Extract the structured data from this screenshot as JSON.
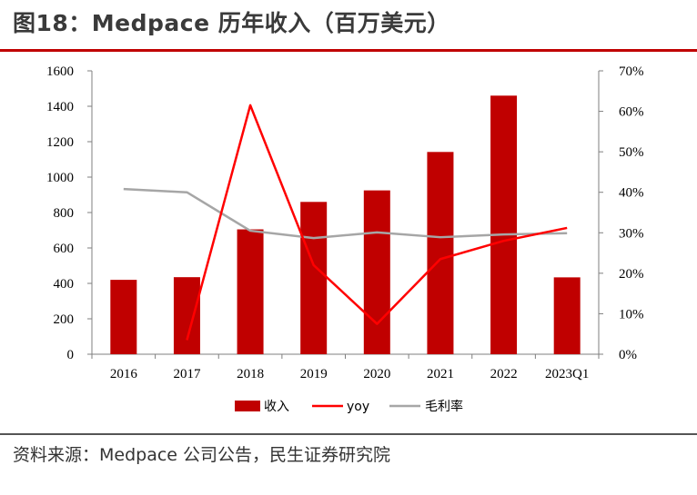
{
  "title": "图18：Medpace 历年收入（百万美元）",
  "source": "资料来源：Medpace 公司公告，民生证券研究院",
  "colors": {
    "bar": "#c00000",
    "yoy": "#ff0000",
    "margin": "#a6a6a6",
    "rule": "#c00000"
  },
  "chart_data": {
    "type": "bar",
    "categories": [
      "2016",
      "2017",
      "2018",
      "2019",
      "2020",
      "2021",
      "2022",
      "2023Q1"
    ],
    "series": [
      {
        "name": "收入",
        "type": "bar",
        "axis": "left",
        "values": [
          420,
          435,
          705,
          860,
          925,
          1142,
          1460,
          434
        ]
      },
      {
        "name": "yoy",
        "type": "line",
        "axis": "right",
        "values": [
          null,
          3.5,
          61.5,
          22.0,
          7.5,
          23.5,
          28.0,
          31.2
        ]
      },
      {
        "name": "毛利率",
        "type": "line",
        "axis": "right",
        "values": [
          40.8,
          40.0,
          30.5,
          28.7,
          30.1,
          28.9,
          29.6,
          29.9
        ]
      }
    ],
    "y_left": {
      "min": 0,
      "max": 1600,
      "step": 200,
      "ticks": [
        "0",
        "200",
        "400",
        "600",
        "800",
        "1000",
        "1200",
        "1400",
        "1600"
      ]
    },
    "y_right": {
      "min": 0,
      "max": 70,
      "step": 10,
      "ticks": [
        "0%",
        "10%",
        "20%",
        "30%",
        "40%",
        "50%",
        "60%",
        "70%"
      ]
    },
    "legend": {
      "position": "bottom",
      "labels": [
        "收入",
        "yoy",
        "毛利率"
      ]
    }
  }
}
